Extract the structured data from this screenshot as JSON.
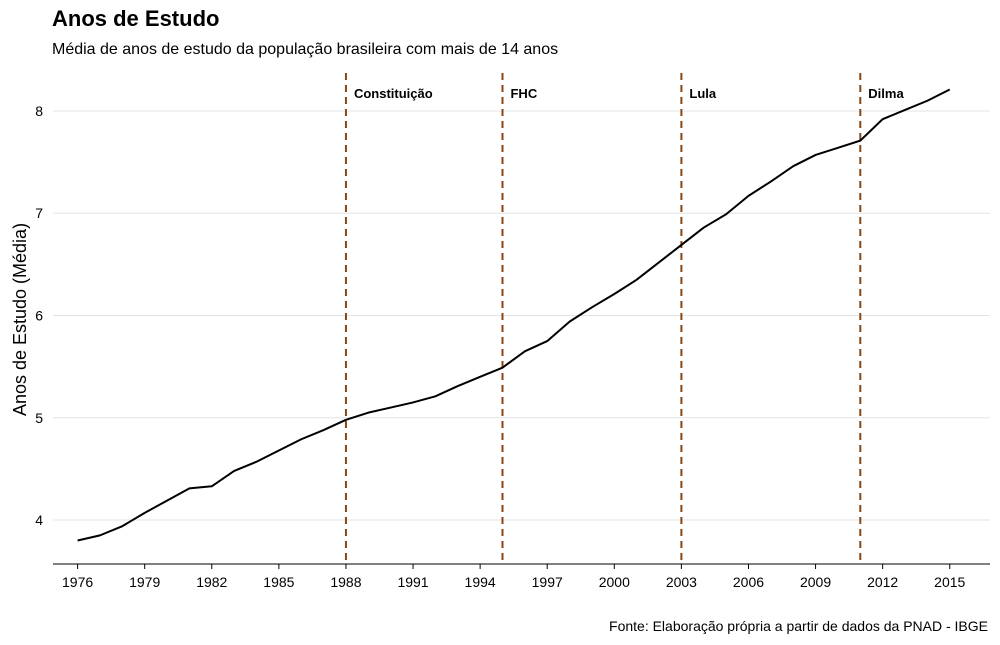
{
  "title": "Anos de Estudo",
  "subtitle": "Média de anos de estudo da população brasileira com mais de 14 anos",
  "caption": "Fonte: Elaboração própria a partir de dados da PNAD - IBGE",
  "chart_data": {
    "type": "line",
    "title": "Anos de Estudo",
    "subtitle": "Média de anos de estudo da população brasileira com mais de 14 anos",
    "xlabel": "",
    "ylabel": "Anos de Estudo (Média)",
    "xlim": [
      1974.9,
      2016.8
    ],
    "ylim": [
      3.57,
      8.43
    ],
    "x_ticks": [
      1976,
      1979,
      1982,
      1985,
      1988,
      1991,
      1994,
      1997,
      2000,
      2003,
      2006,
      2009,
      2012,
      2015
    ],
    "y_ticks": [
      4,
      5,
      6,
      7,
      8
    ],
    "grid": "horizontal",
    "line_color": "#000000",
    "series": [
      {
        "x": [
          1976,
          1977,
          1978,
          1979,
          1980,
          1981,
          1982,
          1983,
          1984,
          1985,
          1986,
          1987,
          1988,
          1989,
          1990,
          1991,
          1992,
          1993,
          1994,
          1995,
          1996,
          1997,
          1998,
          1999,
          2000,
          2001,
          2002,
          2003,
          2004,
          2005,
          2006,
          2007,
          2008,
          2009,
          2010,
          2011,
          2012,
          2013,
          2014,
          2015
        ],
        "values": [
          3.8,
          3.85,
          3.94,
          4.07,
          4.19,
          4.31,
          4.33,
          4.48,
          4.57,
          4.68,
          4.79,
          4.88,
          4.98,
          5.05,
          5.1,
          5.15,
          5.21,
          5.31,
          5.4,
          5.49,
          5.65,
          5.75,
          5.94,
          6.08,
          6.21,
          6.35,
          6.52,
          6.69,
          6.86,
          6.99,
          7.17,
          7.31,
          7.46,
          7.57,
          7.64,
          7.71,
          7.92,
          8.01,
          8.1,
          8.21
        ]
      }
    ],
    "event_color": "#8B4513",
    "events": [
      {
        "x": 1988,
        "label": "Constituição"
      },
      {
        "x": 1995,
        "label": "FHC"
      },
      {
        "x": 2003,
        "label": "Lula"
      },
      {
        "x": 2011,
        "label": "Dilma"
      }
    ]
  }
}
